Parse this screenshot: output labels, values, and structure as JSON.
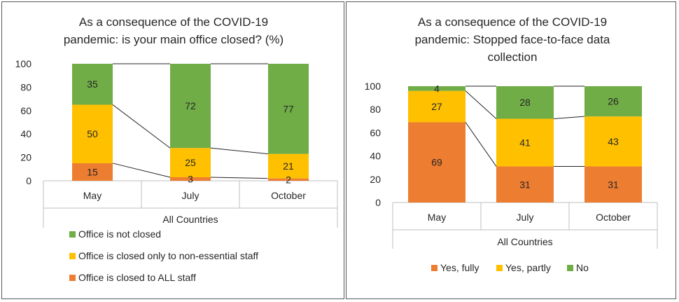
{
  "chart_data": [
    {
      "type": "bar",
      "stacked": true,
      "title": "As a consequence of the COVID-19 pandemic: is your main office closed? (%)",
      "title_lines": [
        "As a consequence of the COVID-19",
        "pandemic: is your main office closed? (%)"
      ],
      "categories": [
        "May",
        "July",
        "October"
      ],
      "group_label": "All Countries",
      "ylim": [
        0,
        100
      ],
      "yticks": [
        0,
        20,
        40,
        60,
        80,
        100
      ],
      "grid": false,
      "legend_position": "bottom-left",
      "series_lines": true,
      "series": [
        {
          "name": "Office is closed to ALL staff",
          "color": "#ED7D31",
          "values": [
            15,
            3,
            2
          ]
        },
        {
          "name": "Office is closed only to non-essential staff",
          "color": "#FFC000",
          "values": [
            50,
            25,
            21
          ]
        },
        {
          "name": "Office is not closed",
          "color": "#70AD47",
          "values": [
            35,
            72,
            77
          ]
        }
      ],
      "legend_order": [
        "Office is not closed",
        "Office is closed only to non-essential staff",
        "Office is closed to ALL staff"
      ]
    },
    {
      "type": "bar",
      "stacked": true,
      "title": "As a consequence of the COVID-19 pandemic: Stopped face-to-face data collection",
      "title_lines": [
        "As a consequence of the COVID-19",
        "pandemic: Stopped face-to-face data",
        "collection"
      ],
      "categories": [
        "May",
        "July",
        "October"
      ],
      "group_label": "All Countries",
      "ylim": [
        0,
        100
      ],
      "yticks": [
        0,
        20,
        40,
        60,
        80,
        100
      ],
      "grid": false,
      "legend_position": "bottom",
      "series_lines": true,
      "series": [
        {
          "name": "Yes, fully",
          "color": "#ED7D31",
          "values": [
            69,
            31,
            31
          ]
        },
        {
          "name": "Yes, partly",
          "color": "#FFC000",
          "values": [
            27,
            41,
            43
          ]
        },
        {
          "name": "No",
          "color": "#70AD47",
          "values": [
            4,
            28,
            26
          ]
        }
      ],
      "legend_order": [
        "Yes, fully",
        "Yes, partly",
        "No"
      ]
    }
  ]
}
